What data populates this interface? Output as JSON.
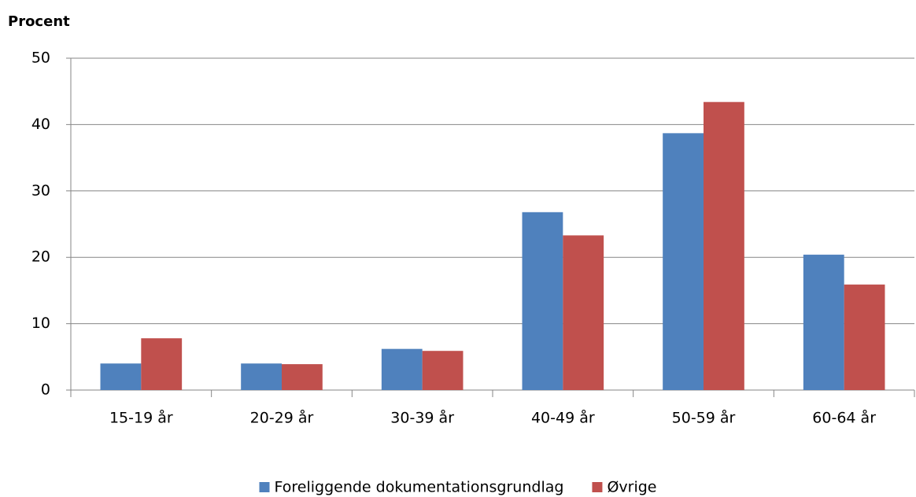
{
  "chart_data": {
    "type": "bar",
    "y_label": "Procent",
    "categories": [
      "15-19 år",
      "20-29 år",
      "30-39 år",
      "40-49 år",
      "50-59 år",
      "60-64 år"
    ],
    "series": [
      {
        "name": "Foreliggende dokumentationsgrundlag",
        "color": "#4f81bd",
        "values": [
          4.0,
          4.0,
          6.2,
          26.8,
          38.7,
          20.4
        ]
      },
      {
        "name": "Øvrige",
        "color": "#c0504d",
        "values": [
          7.8,
          3.9,
          5.9,
          23.3,
          43.4,
          15.9
        ]
      }
    ],
    "ylim": [
      0,
      50
    ],
    "yticks": [
      0,
      10,
      20,
      30,
      40,
      50
    ],
    "grid": true,
    "legend": "bottom"
  }
}
